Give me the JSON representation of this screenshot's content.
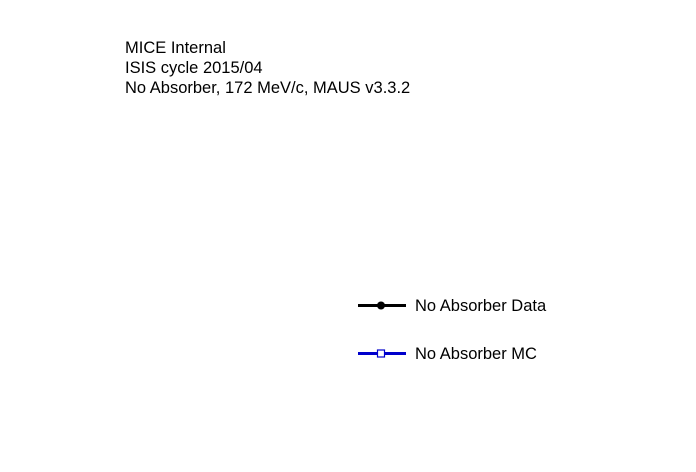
{
  "chart_data": {
    "type": "line",
    "title": "",
    "xlabel": "",
    "ylabel": "",
    "annotations": [
      "MICE Internal",
      "ISIS cycle 2015/04",
      "No Absorber, 172 MeV/c, MAUS v3.3.2"
    ],
    "legend_position": "right",
    "series": [
      {
        "name": "No Absorber Data",
        "color": "#000000",
        "marker": "filled-circle",
        "values": []
      },
      {
        "name": "No Absorber MC",
        "color": "#0000cc",
        "marker": "open-square",
        "values": []
      }
    ]
  }
}
